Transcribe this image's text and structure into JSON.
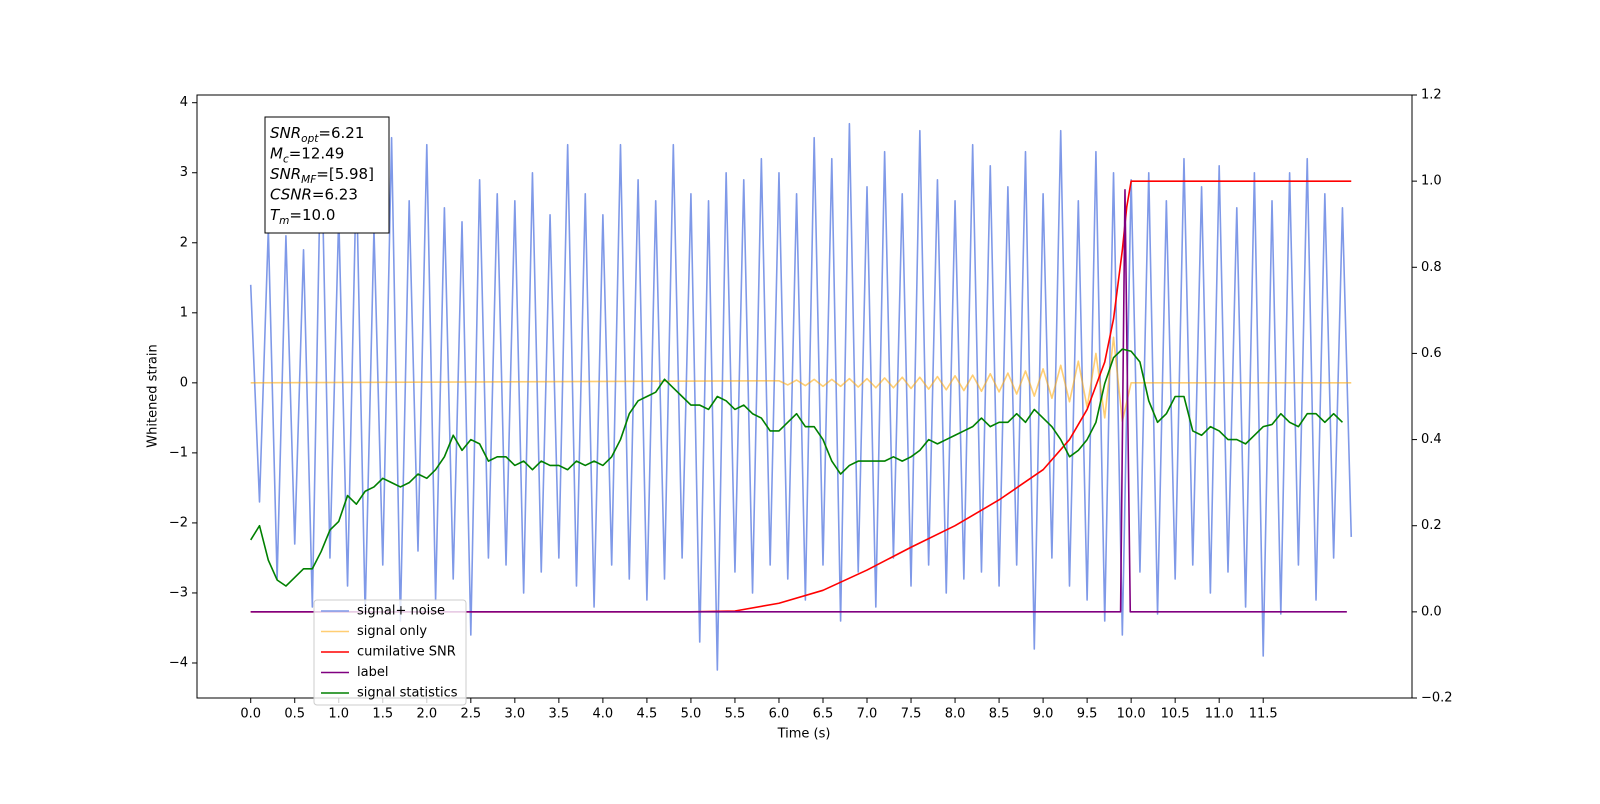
{
  "chart_data": {
    "type": "line",
    "xlabel": "Time (s)",
    "ylabel": "Whitened strain",
    "xlim": [
      -0.61,
      13.19
    ],
    "ylim": [
      -4.5,
      4.11
    ],
    "y2lim": [
      -0.2,
      1.2
    ],
    "xticks": [
      {
        "value": 0,
        "label": "0.0"
      },
      0.5,
      {
        "value": 1,
        "label": "1.0"
      },
      1.5,
      {
        "value": 2,
        "label": "2.0"
      },
      2.5,
      {
        "value": 3,
        "label": "3.0"
      },
      3.5,
      {
        "value": 4,
        "label": "4.0"
      },
      4.5,
      {
        "value": 5,
        "label": "5.0"
      },
      5.5,
      {
        "value": 6,
        "label": "6.0"
      },
      6.5,
      {
        "value": 7,
        "label": "7.0"
      },
      7.5,
      {
        "value": 8,
        "label": "8.0"
      },
      8.5,
      {
        "value": 9,
        "label": "9.0"
      },
      9.5,
      {
        "value": 10,
        "label": "10.0"
      },
      10.5,
      {
        "value": 11,
        "label": "11.0"
      },
      11.5
    ],
    "yticks": [
      {
        "value": -4,
        "label": "−4"
      },
      {
        "value": -3,
        "label": "−3"
      },
      {
        "value": -2,
        "label": "−2"
      },
      {
        "value": -1,
        "label": "−1"
      },
      0,
      1,
      2,
      3,
      4
    ],
    "y2ticks": [
      {
        "value": -0.2,
        "label": "−0.2"
      },
      {
        "value": 0,
        "label": "0.0"
      },
      0.2,
      0.4,
      0.6,
      0.8,
      {
        "value": 1,
        "label": "1.0"
      },
      1.2
    ],
    "grid": false,
    "legend": "lower left",
    "annotation_box": {
      "lines": [
        {
          "main": "SNR",
          "sub": "opt",
          "text": "=6.21"
        },
        {
          "main": "M",
          "sub": "c",
          "text": "=12.49"
        },
        {
          "main": "SNR",
          "sub": "MF",
          "text": "=[5.98]"
        },
        {
          "main": "CSNR",
          "text": "=6.23"
        },
        {
          "main": "T",
          "sub": "m",
          "text": "=10.0"
        }
      ]
    },
    "series": [
      {
        "name": "signal+ noise",
        "color": "#7893e7",
        "x": [
          0,
          0.1,
          0.2,
          0.3,
          0.4,
          0.5,
          0.6,
          0.7,
          0.8,
          0.9,
          1,
          1.1,
          1.2,
          1.3,
          1.4,
          1.5,
          1.6,
          1.7,
          1.8,
          1.9,
          2,
          2.1,
          2.2,
          2.3,
          2.4,
          2.5,
          2.6,
          2.7,
          2.8,
          2.9,
          3,
          3.1,
          3.2,
          3.3,
          3.4,
          3.5,
          3.6,
          3.7,
          3.8,
          3.9,
          4,
          4.1,
          4.2,
          4.3,
          4.4,
          4.5,
          4.6,
          4.7,
          4.8,
          4.9,
          5,
          5.1,
          5.2,
          5.3,
          5.4,
          5.5,
          5.6,
          5.7,
          5.8,
          5.9,
          6,
          6.1,
          6.2,
          6.3,
          6.4,
          6.5,
          6.6,
          6.7,
          6.8,
          6.9,
          7,
          7.1,
          7.2,
          7.3,
          7.4,
          7.5,
          7.6,
          7.7,
          7.8,
          7.9,
          8,
          8.1,
          8.2,
          8.3,
          8.4,
          8.5,
          8.6,
          8.7,
          8.8,
          8.9,
          9,
          9.1,
          9.2,
          9.3,
          9.4,
          9.5,
          9.6,
          9.7,
          9.8,
          9.9,
          10,
          10.1,
          10.2,
          10.3,
          10.4,
          10.5,
          10.6,
          10.7,
          10.8,
          10.9,
          11,
          11.1,
          11.2,
          11.3,
          11.4,
          11.5,
          11.6,
          11.7,
          11.8,
          11.9,
          12,
          12.1,
          12.2,
          12.3,
          12.4,
          12.5
        ],
        "values": [
          1.4,
          -1.7,
          2.2,
          -2.8,
          2.1,
          -2.3,
          1.9,
          -3.2,
          3.6,
          -2.5,
          2.4,
          -2.9,
          3.0,
          -3.3,
          2.2,
          -2.6,
          3.5,
          -3.4,
          2.6,
          -2.4,
          3.4,
          -3.1,
          2.5,
          -2.8,
          2.3,
          -3.6,
          2.9,
          -2.5,
          2.7,
          -2.6,
          2.6,
          -3.0,
          3.0,
          -2.7,
          2.4,
          -2.5,
          3.4,
          -2.9,
          2.7,
          -3.2,
          2.4,
          -2.6,
          3.4,
          -2.8,
          2.9,
          -3.1,
          2.6,
          -2.8,
          3.4,
          -2.5,
          2.7,
          -3.7,
          2.6,
          -4.1,
          3.0,
          -2.7,
          2.9,
          -3.0,
          3.2,
          -2.6,
          3.0,
          -2.8,
          2.7,
          -3.1,
          3.5,
          -2.6,
          3.2,
          -3.4,
          3.7,
          -2.7,
          2.8,
          -3.2,
          3.3,
          -2.5,
          2.7,
          -2.9,
          3.6,
          -2.6,
          2.9,
          -3.0,
          2.6,
          -2.8,
          3.4,
          -2.7,
          3.1,
          -2.9,
          2.8,
          -2.6,
          3.3,
          -3.8,
          2.7,
          -2.5,
          3.6,
          -2.9,
          2.6,
          -3.1,
          3.3,
          -3.4,
          3.0,
          -3.6,
          2.9,
          -2.7,
          3.0,
          -3.3,
          2.6,
          -2.8,
          3.2,
          -2.6,
          2.8,
          -3.0,
          3.1,
          -2.7,
          2.5,
          -3.2,
          3.0,
          -3.9,
          2.6,
          -3.3,
          3.0,
          -2.6,
          3.2,
          -3.1,
          2.7,
          -2.5,
          2.5,
          -2.2
        ]
      },
      {
        "name": "signal only",
        "color": "orange",
        "x": [
          0,
          6,
          6.1,
          6.2,
          6.3,
          6.4,
          6.5,
          6.6,
          6.7,
          6.8,
          6.9,
          7,
          7.1,
          7.2,
          7.3,
          7.4,
          7.5,
          7.6,
          7.7,
          7.8,
          7.9,
          8,
          8.1,
          8.2,
          8.3,
          8.4,
          8.5,
          8.6,
          8.7,
          8.8,
          8.9,
          9,
          9.1,
          9.2,
          9.3,
          9.4,
          9.5,
          9.6,
          9.7,
          9.8,
          9.9,
          10,
          12.5
        ],
        "values": [
          0,
          0.03,
          -0.03,
          0.04,
          -0.04,
          0.05,
          -0.05,
          0.05,
          -0.05,
          0.06,
          -0.06,
          0.06,
          -0.07,
          0.07,
          -0.07,
          0.08,
          -0.08,
          0.08,
          -0.09,
          0.09,
          -0.1,
          0.1,
          -0.11,
          0.11,
          -0.12,
          0.13,
          -0.13,
          0.14,
          -0.16,
          0.17,
          -0.19,
          0.2,
          -0.22,
          0.25,
          -0.27,
          0.31,
          -0.35,
          0.42,
          -0.5,
          0.65,
          -0.55,
          0,
          0
        ]
      },
      {
        "name": "cumilative SNR",
        "color": "red",
        "axis": "y2",
        "x": [
          0,
          5,
          5.5,
          6,
          6.5,
          7,
          7.5,
          8,
          8.5,
          9,
          9.3,
          9.5,
          9.7,
          9.8,
          9.9,
          9.95,
          10,
          12.5
        ],
        "values": [
          0,
          0,
          0.002,
          0.02,
          0.05,
          0.097,
          0.15,
          0.2,
          0.26,
          0.33,
          0.4,
          0.47,
          0.58,
          0.68,
          0.84,
          0.94,
          1,
          1
        ]
      },
      {
        "name": "label",
        "color": "purple",
        "axis": "y2",
        "x": [
          0,
          9.88,
          9.93,
          9.99,
          12.45
        ],
        "values": [
          0,
          0,
          0.98,
          0,
          0
        ]
      },
      {
        "name": "signal statistics",
        "color": "green",
        "axis": "y2",
        "x": [
          0,
          0.1,
          0.2,
          0.3,
          0.4,
          0.5,
          0.6,
          0.7,
          0.8,
          0.9,
          1,
          1.1,
          1.2,
          1.3,
          1.4,
          1.5,
          1.6,
          1.7,
          1.8,
          1.9,
          2,
          2.1,
          2.2,
          2.3,
          2.4,
          2.5,
          2.6,
          2.7,
          2.8,
          2.9,
          3,
          3.1,
          3.2,
          3.3,
          3.4,
          3.5,
          3.6,
          3.7,
          3.8,
          3.9,
          4,
          4.1,
          4.2,
          4.3,
          4.4,
          4.5,
          4.6,
          4.7,
          4.8,
          4.9,
          5,
          5.1,
          5.2,
          5.3,
          5.4,
          5.5,
          5.6,
          5.7,
          5.8,
          5.9,
          6,
          6.1,
          6.2,
          6.3,
          6.4,
          6.5,
          6.6,
          6.7,
          6.8,
          6.9,
          7,
          7.1,
          7.2,
          7.3,
          7.4,
          7.5,
          7.6,
          7.7,
          7.8,
          7.9,
          8,
          8.1,
          8.2,
          8.3,
          8.4,
          8.5,
          8.6,
          8.7,
          8.8,
          8.9,
          9,
          9.1,
          9.2,
          9.3,
          9.4,
          9.5,
          9.6,
          9.7,
          9.8,
          9.9,
          10,
          10.1,
          10.2,
          10.3,
          10.4,
          10.5,
          10.6,
          10.7,
          10.8,
          10.9,
          11,
          11.1,
          11.2,
          11.3,
          11.4,
          11.5,
          11.6,
          11.7,
          11.8,
          11.9,
          12,
          12.1,
          12.2,
          12.3,
          12.4
        ],
        "values": [
          0.167,
          0.2,
          0.12,
          0.074,
          0.06,
          0.08,
          0.1,
          0.1,
          0.14,
          0.19,
          0.21,
          0.27,
          0.25,
          0.28,
          0.29,
          0.31,
          0.3,
          0.29,
          0.3,
          0.32,
          0.31,
          0.33,
          0.36,
          0.41,
          0.375,
          0.4,
          0.39,
          0.35,
          0.36,
          0.36,
          0.34,
          0.35,
          0.33,
          0.35,
          0.34,
          0.34,
          0.33,
          0.35,
          0.34,
          0.35,
          0.34,
          0.36,
          0.4,
          0.46,
          0.49,
          0.5,
          0.51,
          0.54,
          0.52,
          0.5,
          0.48,
          0.48,
          0.47,
          0.5,
          0.49,
          0.47,
          0.48,
          0.46,
          0.45,
          0.42,
          0.42,
          0.44,
          0.46,
          0.43,
          0.43,
          0.4,
          0.35,
          0.32,
          0.34,
          0.35,
          0.35,
          0.35,
          0.35,
          0.36,
          0.35,
          0.36,
          0.375,
          0.4,
          0.39,
          0.4,
          0.41,
          0.42,
          0.43,
          0.45,
          0.43,
          0.44,
          0.44,
          0.46,
          0.44,
          0.47,
          0.45,
          0.43,
          0.4,
          0.36,
          0.375,
          0.4,
          0.44,
          0.53,
          0.59,
          0.61,
          0.605,
          0.58,
          0.49,
          0.44,
          0.46,
          0.5,
          0.5,
          0.42,
          0.41,
          0.43,
          0.42,
          0.4,
          0.4,
          0.39,
          0.41,
          0.43,
          0.435,
          0.46,
          0.44,
          0.43,
          0.46,
          0.46,
          0.44,
          0.46,
          0.44
        ]
      }
    ]
  }
}
